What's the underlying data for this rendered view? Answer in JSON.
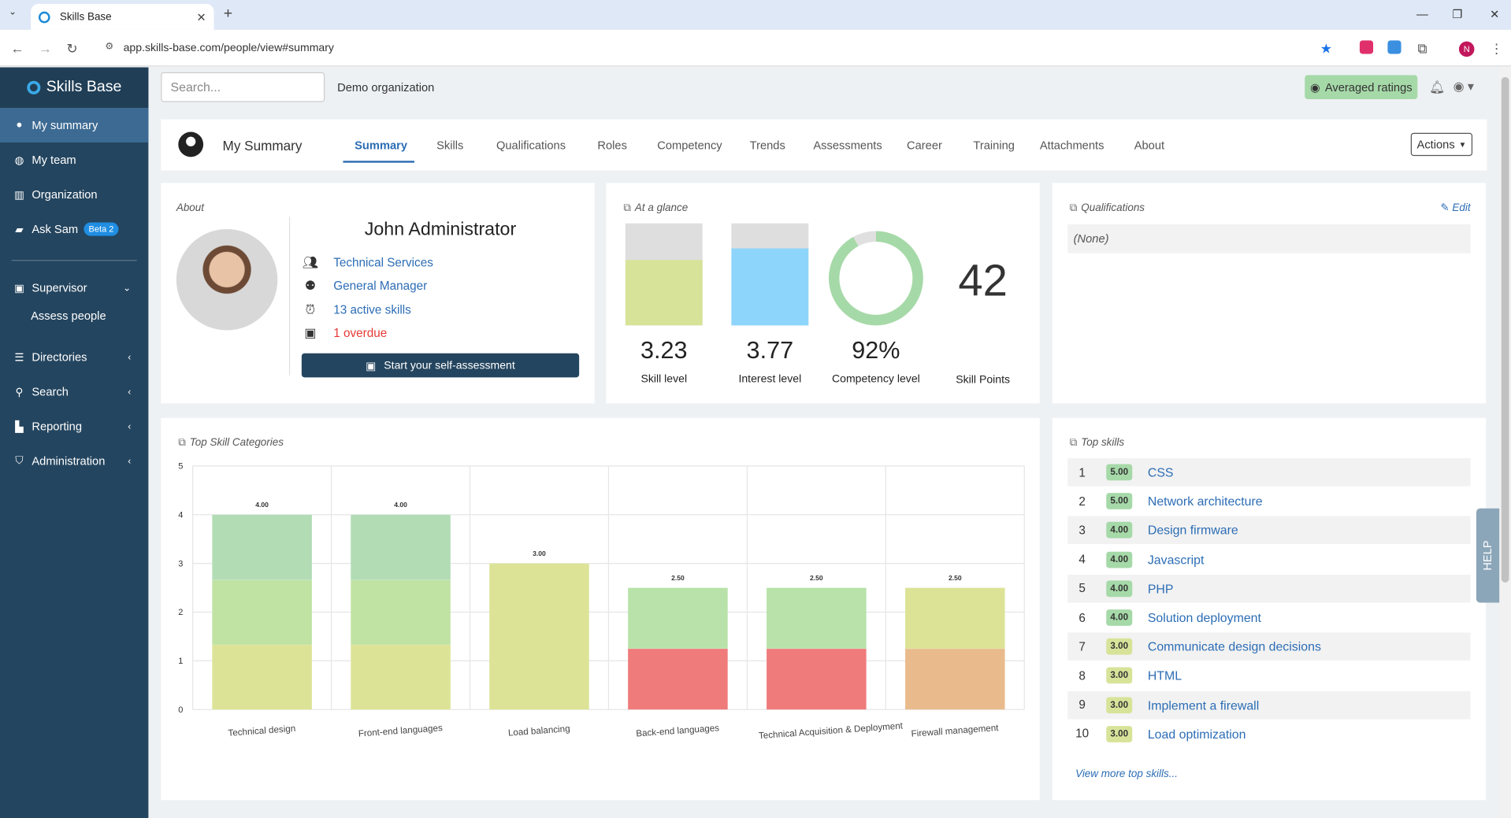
{
  "browser": {
    "tab_title": "Skills Base",
    "url": "app.skills-base.com/people/view#summary"
  },
  "sidebar": {
    "brand": "Skills Base",
    "items": [
      {
        "label": "My summary",
        "icon": "user-circle-icon",
        "active": true
      },
      {
        "label": "My team",
        "icon": "globe-icon"
      },
      {
        "label": "Organization",
        "icon": "building-icon"
      },
      {
        "label": "Ask Sam",
        "icon": "chat-icon",
        "badge": "Beta 2"
      }
    ],
    "supervisor": {
      "label": "Supervisor",
      "sub": "Assess people"
    },
    "sections": [
      {
        "label": "Directories",
        "icon": "list-icon"
      },
      {
        "label": "Search",
        "icon": "search-icon"
      },
      {
        "label": "Reporting",
        "icon": "chart-icon"
      },
      {
        "label": "Administration",
        "icon": "shield-icon"
      }
    ]
  },
  "header": {
    "search_placeholder": "Search...",
    "org": "Demo organization",
    "averaged": "Averaged ratings"
  },
  "nav": {
    "title": "My Summary",
    "tabs": [
      "Summary",
      "Skills",
      "Qualifications",
      "Roles",
      "Competency",
      "Trends",
      "Assessments",
      "Career",
      "Training",
      "Attachments",
      "About"
    ],
    "actions": "Actions"
  },
  "about": {
    "title": "About",
    "name": "John Administrator",
    "team": "Technical Services",
    "role": "General Manager",
    "skills": "13 active skills",
    "overdue": "1 overdue",
    "button": "Start your self-assessment"
  },
  "glance": {
    "title": "At a glance",
    "skill_value": "3.23",
    "skill_label": "Skill level",
    "skill_fraction": 0.646,
    "interest_value": "3.77",
    "interest_label": "Interest level",
    "interest_fraction": 0.754,
    "competency_value": "92%",
    "competency_label": "Competency level",
    "competency_fraction": 0.92,
    "points_value": "42",
    "points_label": "Skill Points",
    "colors": {
      "skill": "#d8e39a",
      "interest": "#8dd5fb",
      "competency": "#a6d9a8"
    }
  },
  "qualifications": {
    "title": "Qualifications",
    "edit": "Edit",
    "none": "(None)"
  },
  "top_skills": {
    "title": "Top skills",
    "view_more": "View more top skills...",
    "items": [
      {
        "rank": "1",
        "score": "5.00",
        "name": "CSS"
      },
      {
        "rank": "2",
        "score": "5.00",
        "name": "Network architecture"
      },
      {
        "rank": "3",
        "score": "4.00",
        "name": "Design firmware"
      },
      {
        "rank": "4",
        "score": "4.00",
        "name": "Javascript"
      },
      {
        "rank": "5",
        "score": "4.00",
        "name": "PHP"
      },
      {
        "rank": "6",
        "score": "4.00",
        "name": "Solution deployment"
      },
      {
        "rank": "7",
        "score": "3.00",
        "name": "Communicate design decisions"
      },
      {
        "rank": "8",
        "score": "3.00",
        "name": "HTML"
      },
      {
        "rank": "9",
        "score": "3.00",
        "name": "Implement a firewall"
      },
      {
        "rank": "10",
        "score": "3.00",
        "name": "Load optimization"
      }
    ]
  },
  "help": "HELP",
  "chart_data": {
    "type": "bar",
    "title": "Top Skill Categories",
    "categories": [
      "Technical design",
      "Front-end languages",
      "Load balancing",
      "Back-end languages",
      "Technical Acquisition & Deployment",
      "Firewall management"
    ],
    "totals": [
      4.0,
      4.0,
      3.0,
      2.5,
      2.5,
      2.5
    ],
    "total_labels": [
      "4.00",
      "4.00",
      "3.00",
      "2.50",
      "2.50",
      "2.50"
    ],
    "stacks": [
      [
        {
          "v": 1.33,
          "c": "#dce396"
        },
        {
          "v": 1.33,
          "c": "#c0e2a3"
        },
        {
          "v": 1.34,
          "c": "#b1dcb4"
        }
      ],
      [
        {
          "v": 1.33,
          "c": "#dce396"
        },
        {
          "v": 1.33,
          "c": "#c0e2a3"
        },
        {
          "v": 1.34,
          "c": "#b1dcb4"
        }
      ],
      [
        {
          "v": 3.0,
          "c": "#dce396"
        }
      ],
      [
        {
          "v": 1.25,
          "c": "#ef7b7b"
        },
        {
          "v": 1.25,
          "c": "#b8e2a9"
        }
      ],
      [
        {
          "v": 1.25,
          "c": "#ef7b7b"
        },
        {
          "v": 1.25,
          "c": "#b8e2a9"
        }
      ],
      [
        {
          "v": 1.25,
          "c": "#e9bb8c"
        },
        {
          "v": 1.25,
          "c": "#dce396"
        }
      ]
    ],
    "ylim": [
      0,
      5
    ],
    "yticks": [
      "0",
      "1",
      "2",
      "3",
      "4",
      "5"
    ],
    "grid": true
  }
}
